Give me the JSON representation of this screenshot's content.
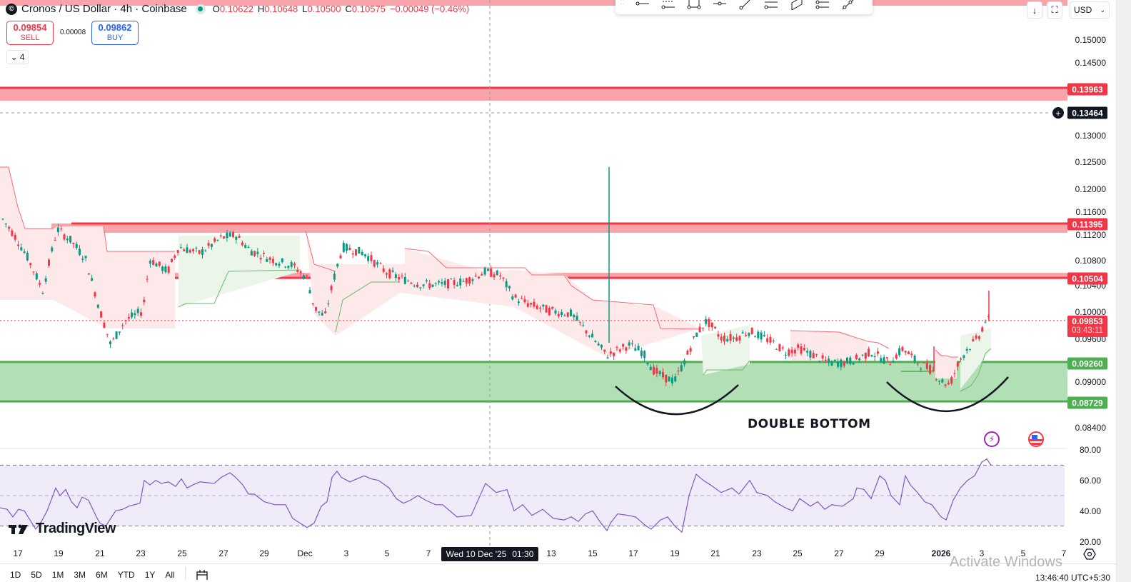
{
  "header": {
    "symbol_title": "Cronos / US Dollar · 4h · Coinbase",
    "ohlc": [
      {
        "key": "O",
        "value": "0.10622"
      },
      {
        "key": "H",
        "value": "0.10648"
      },
      {
        "key": "L",
        "value": "0.10500"
      },
      {
        "key": "C",
        "value": "0.10575"
      }
    ],
    "change": "−0.00049 (−0.46%)"
  },
  "trade": {
    "sell_price": "0.09854",
    "sell_label": "SELL",
    "spread": "0.00008",
    "buy_price": "0.09862",
    "buy_label": "BUY",
    "indicators_toggle": "4"
  },
  "drawing_toolbar": {
    "tools": [
      "horizontal-ray",
      "parallel-channel",
      "rectangle",
      "horizontal-line",
      "trend-line",
      "fib-retracement",
      "parallelogram",
      "multi-line",
      "path"
    ]
  },
  "top_right": {
    "currency": "USD"
  },
  "price_axis": {
    "ticks": [
      "0.15000",
      "0.14500",
      "0.13000",
      "0.12500",
      "0.12000",
      "0.11600",
      "0.11200",
      "0.10800",
      "0.10400",
      "0.10000",
      "0.09600",
      "0.09000",
      "0.08400"
    ],
    "tags": {
      "resistance_top": "0.13963",
      "crosshair": "0.13464",
      "resistance_mid": "0.11395",
      "resistance_low": "0.10504",
      "last_price": "0.09853",
      "countdown": "03:43:11",
      "support_top": "0.09260",
      "support_bottom": "0.08729"
    }
  },
  "rsi_axis": {
    "ticks": [
      "80.00",
      "60.00",
      "40.00",
      "20.00"
    ]
  },
  "time_axis": {
    "ticks": [
      "17",
      "19",
      "21",
      "23",
      "25",
      "27",
      "29",
      "Dec",
      "3",
      "5",
      "7",
      "13",
      "15",
      "17",
      "19",
      "21",
      "23",
      "25",
      "27",
      "29",
      "2026",
      "3",
      "5",
      "7"
    ],
    "crosshair_date": "Wed 10 Dec '25",
    "crosshair_time": "01:30"
  },
  "range_bar": {
    "ranges": [
      "1D",
      "5D",
      "1M",
      "3M",
      "6M",
      "YTD",
      "1Y",
      "All"
    ]
  },
  "annotations": {
    "pattern": "DOUBLE BOTTOM"
  },
  "branding": {
    "logo_text": "TradingView"
  },
  "system": {
    "watermark": "Activate Windows",
    "clock": "13:46:40 UTC+5:30"
  },
  "colors": {
    "bull": "#089981",
    "bear": "#f23645",
    "resistance_zone": "#f9a3aa",
    "support_zone": "#b2dfb5",
    "support_line": "#4caf50",
    "rsi_line": "#7e57c2",
    "rsi_band": "#efebf9"
  },
  "chart_data": {
    "type": "candlestick",
    "title": "Cronos / US Dollar · 4h · Coinbase",
    "scale": "log",
    "ylim": [
      0.084,
      0.15
    ],
    "x_range": [
      "Nov 16 2025",
      "Jan 7 2026"
    ],
    "horizontal_zones": [
      {
        "name": "resistance",
        "price": 0.13963,
        "color": "red"
      },
      {
        "name": "resistance",
        "price": 0.11395,
        "color": "red"
      },
      {
        "name": "resistance",
        "price": 0.10504,
        "color": "red"
      },
      {
        "name": "support_top",
        "price": 0.0926,
        "color": "green"
      },
      {
        "name": "support_bottom",
        "price": 0.08729,
        "color": "green"
      }
    ],
    "last_price": 0.09853,
    "annotation": "DOUBLE BOTTOM",
    "rsi": {
      "ylim": [
        20,
        80
      ],
      "bands": [
        30,
        50,
        70
      ],
      "last": 70
    }
  }
}
